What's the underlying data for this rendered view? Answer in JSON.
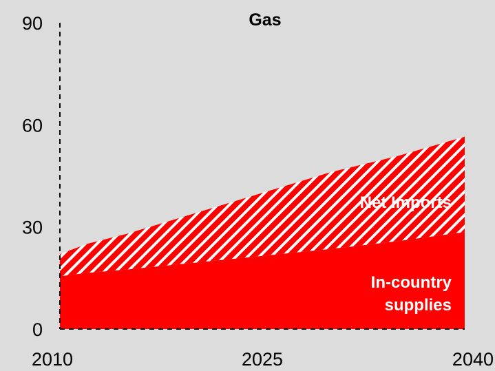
{
  "chart_data": {
    "type": "area",
    "title": "Gas",
    "xlabel": "",
    "ylabel": "",
    "xlim": [
      2010,
      2040
    ],
    "ylim": [
      0,
      90
    ],
    "x_ticks": [
      "2010",
      "2025",
      "2040"
    ],
    "y_ticks": [
      "0",
      "30",
      "60",
      "90"
    ],
    "stacked": true,
    "grid": false,
    "x": [
      2010,
      2012,
      2015,
      2020,
      2025,
      2030,
      2035,
      2040
    ],
    "series": [
      {
        "name": "In-country supplies",
        "label_lines": [
          "In-country",
          "supplies"
        ],
        "color": "#ff0000",
        "fill": "solid",
        "values": [
          15.5,
          16.5,
          17.5,
          19.5,
          21.5,
          23.5,
          25.8,
          28.5
        ]
      },
      {
        "name": "Net Imports",
        "label_lines": [
          "Net Imports"
        ],
        "color": "#ff0000",
        "fill": "diagonal-hatch",
        "values": [
          6.5,
          8.5,
          10.5,
          14.5,
          18.5,
          22.5,
          25.0,
          28.0
        ]
      }
    ]
  }
}
